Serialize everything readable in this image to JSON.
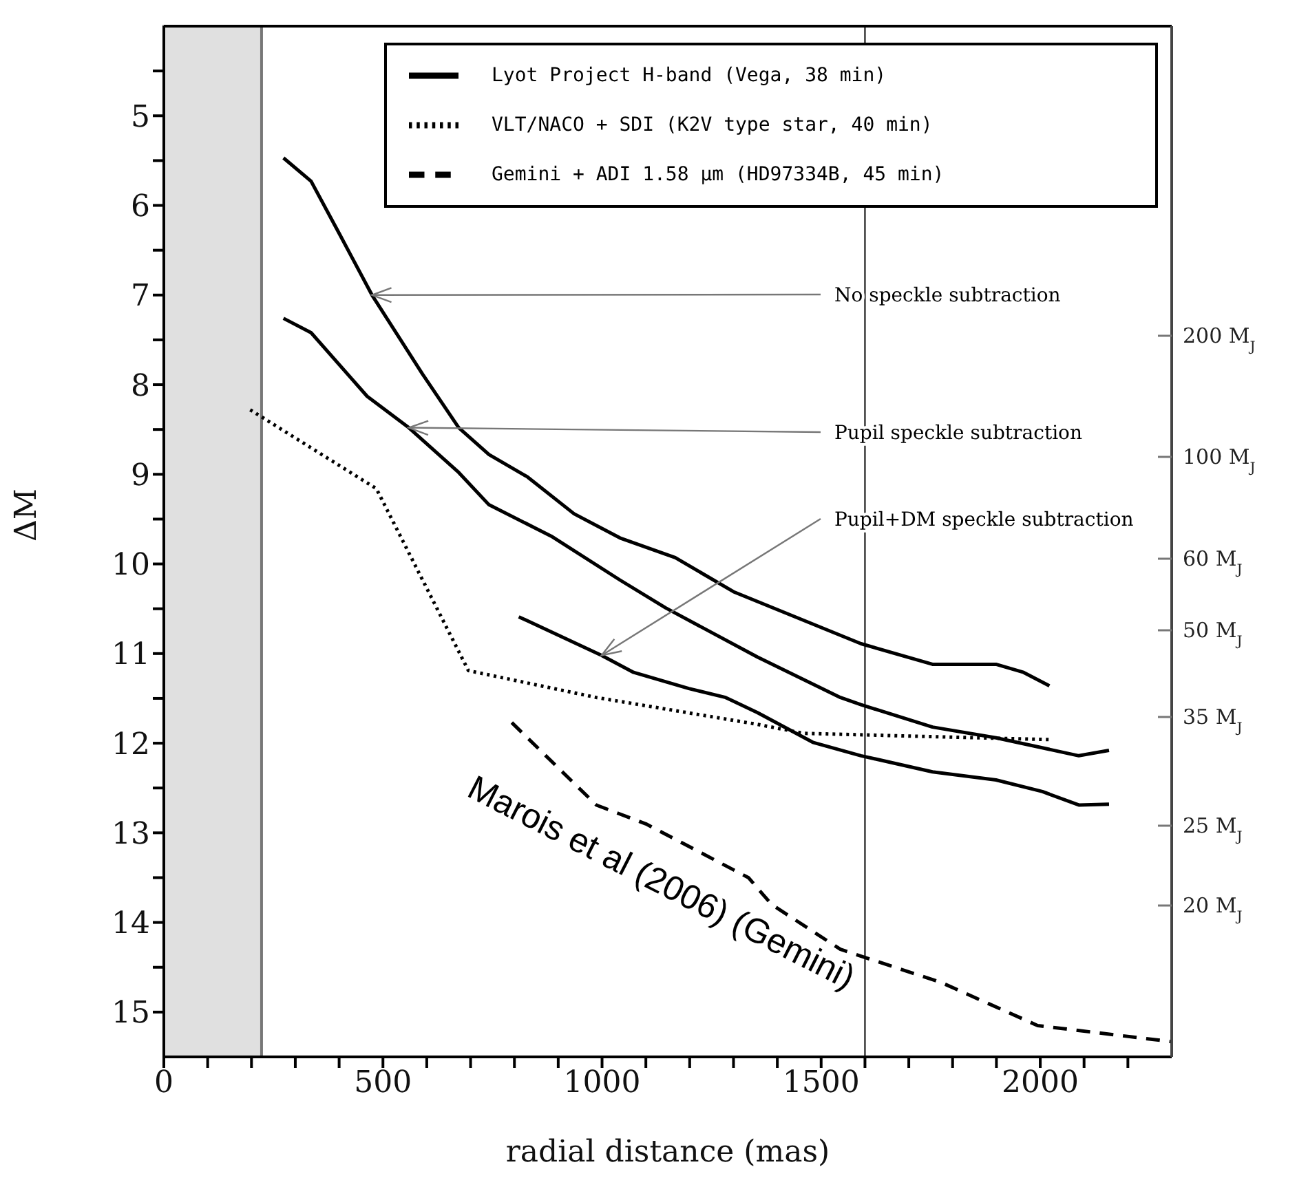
{
  "chart_data": {
    "type": "line",
    "xlabel": "radial distance (mas)",
    "ylabel": "ΔM",
    "xlim": [
      0,
      2300
    ],
    "xticks": [
      0,
      {
        "value": 100,
        "label": null
      },
      {
        "value": 200,
        "label": null
      },
      {
        "value": 300,
        "label": null
      },
      {
        "value": 400,
        "label": null
      },
      500,
      {
        "value": 600,
        "label": null
      },
      {
        "value": 700,
        "label": null
      },
      {
        "value": 800,
        "label": null
      },
      {
        "value": 900,
        "label": null
      },
      1000,
      {
        "value": 1100,
        "label": null
      },
      {
        "value": 1200,
        "label": null
      },
      {
        "value": 1300,
        "label": null
      },
      {
        "value": 1400,
        "label": null
      },
      1500,
      {
        "value": 1600,
        "label": null
      },
      {
        "value": 1700,
        "label": null
      },
      {
        "value": 1800,
        "label": null
      },
      {
        "value": 1900,
        "label": null
      },
      2000,
      {
        "value": 2100,
        "label": null
      },
      {
        "value": 2200,
        "label": null
      }
    ],
    "ylim": [
      15.5,
      4
    ],
    "yticks": [
      {
        "value": 4.5,
        "label": null
      },
      5,
      {
        "value": 5.5,
        "label": null
      },
      6,
      {
        "value": 6.5,
        "label": null
      },
      7,
      {
        "value": 7.5,
        "label": null
      },
      8,
      {
        "value": 8.5,
        "label": null
      },
      9,
      {
        "value": 9.5,
        "label": null
      },
      10,
      {
        "value": 10.5,
        "label": null
      },
      11,
      {
        "value": 11.5,
        "label": null
      },
      12,
      {
        "value": 12.5,
        "label": null
      },
      13,
      {
        "value": 13.5,
        "label": null
      },
      14,
      {
        "value": 14.5,
        "label": null
      },
      15
    ],
    "series": [
      {
        "name": "Lyot Project H-band (Vega, 38 min)",
        "color": "#000000",
        "line_style": "solid",
        "x": [
          273,
          336,
          401,
          475,
          590,
          673,
          742,
          830,
          936,
          1041,
          1167,
          1300,
          1591,
          1754,
          1899,
          1962,
          2021
        ],
        "values": [
          5.47,
          5.73,
          6.32,
          7.0,
          7.88,
          8.48,
          8.78,
          9.03,
          9.44,
          9.71,
          9.93,
          10.31,
          10.89,
          11.12,
          11.12,
          11.21,
          11.36
        ]
      },
      {
        "color": "#000000",
        "line_style": "solid",
        "x": [
          273,
          336,
          464,
          559,
          673,
          742,
          884,
          1041,
          1145,
          1355,
          1544,
          1591,
          1754,
          1899,
          2088,
          2157
        ],
        "values": [
          7.26,
          7.42,
          8.13,
          8.48,
          8.98,
          9.34,
          9.69,
          10.18,
          10.49,
          11.04,
          11.49,
          11.57,
          11.82,
          11.94,
          12.14,
          12.08
        ]
      },
      {
        "color": "#000000",
        "line_style": "solid",
        "x": [
          810,
          999,
          1072,
          1198,
          1282,
          1355,
          1481,
          1591,
          1754,
          1899,
          2005,
          2088,
          2157
        ],
        "values": [
          10.59,
          11.02,
          11.21,
          11.39,
          11.49,
          11.66,
          11.99,
          12.14,
          12.32,
          12.41,
          12.54,
          12.69,
          12.68
        ]
      },
      {
        "name": "VLT/NACO + SDI (K2V type star, 40 min)",
        "color": "#000000",
        "line_style": "dotted",
        "x": [
          197,
          485,
          695,
          987,
          1355,
          1460,
          2020
        ],
        "values": [
          8.28,
          9.16,
          11.19,
          11.49,
          11.79,
          11.89,
          11.96
        ]
      },
      {
        "name": "Gemini + ADI 1.58 μm (HD97334B, 45 min)",
        "color": "#000000",
        "line_style": "dashed",
        "x": [
          794,
          987,
          1100,
          1334,
          1387,
          1544,
          1774,
          1994,
          2299
        ],
        "values": [
          11.77,
          12.69,
          12.9,
          13.5,
          13.8,
          14.3,
          14.67,
          15.15,
          15.33
        ]
      }
    ],
    "bands": [
      {
        "axis": "x",
        "from": 0,
        "to": 223,
        "color": "#e0e0e0"
      }
    ],
    "ref_lines": [
      {
        "axis": "x",
        "value": 1600,
        "color": "#000000"
      }
    ],
    "annotations": [
      {
        "text": "No speckle subtraction",
        "x": 475,
        "y": 7.0
      },
      {
        "text": "Pupil speckle subtraction",
        "x": 559,
        "y": 8.48
      },
      {
        "text": "Pupil+DM speckle subtraction",
        "x": 999,
        "y": 11.02
      },
      "Marois et al (2006) (Gemini)",
      "200 M$_{J}$",
      "100 M$_{J}$",
      "60 M$_{J}$",
      "50 M$_{J}$",
      "35 M$_{J}$",
      "25 M$_{J}$",
      "20 M$_{J}$"
    ],
    "legend": "top right",
    "grid": false,
    "marker": "none"
  }
}
